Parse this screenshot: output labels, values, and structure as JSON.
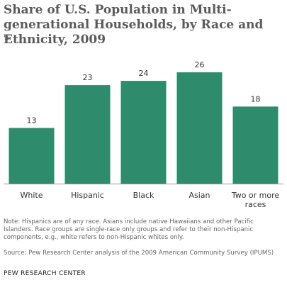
{
  "chart_data": {
    "type": "bar",
    "title": "Share of U.S. Population in Multi-generational Households, by Race and Ethnicity, 2009",
    "ylabel": "%",
    "xlabel": "",
    "categories": [
      "White",
      "Hispanic",
      "Black",
      "Asian",
      "Two or more races"
    ],
    "values": [
      13,
      23,
      24,
      26,
      18
    ],
    "ylim": [
      0,
      26
    ],
    "grid": false,
    "legend": "none",
    "colors": {
      "bar": "#2e8b6b",
      "axis": "#999999"
    }
  },
  "note": "Note: Hispanics are of any race. Asians include native Hawaiians and other Pacific Islanders. Race groups are single-race only groups and refer to their non-Hispanic components, e.g., white refers to non-Hispanic whites only.",
  "source": "Source: Pew Research Center analysis of the 2009 American Community Survey (IPUMS)",
  "brand": "PEW RESEARCH CENTER"
}
